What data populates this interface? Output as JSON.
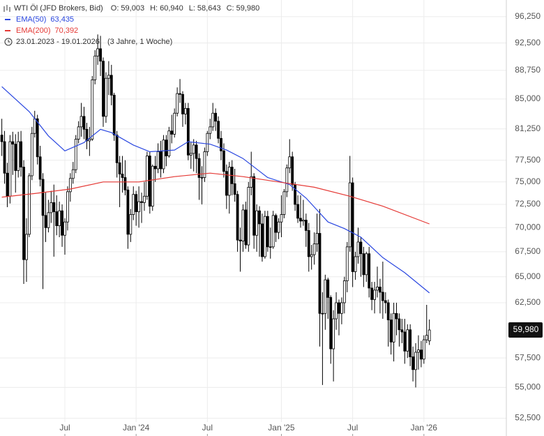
{
  "chart_data": {
    "type": "candlestick",
    "header": {
      "title": "WTI Öl (JFD Brokers, Bid)",
      "ohlc": [
        {
          "key": "O:",
          "value": "59,003"
        },
        {
          "key": "H:",
          "value": "60,940"
        },
        {
          "key": "L:",
          "value": "58,643"
        },
        {
          "key": "C:",
          "value": "59,980"
        }
      ],
      "range": "23.01.2023 - 19.01.2026",
      "span": "(3 Jahre, 1 Woche)"
    },
    "up_color": "#ffffff",
    "down_color": "#000000",
    "open": [
      80.5,
      79.7,
      76.0,
      73.4,
      79.7,
      79.4,
      76.3,
      79.7,
      76.7,
      66.7,
      69.3,
      75.7,
      80.7,
      82.5,
      77.9,
      75.3,
      71.3,
      70.0,
      71.6,
      72.7,
      71.7,
      70.2,
      71.8,
      69.2,
      70.6,
      73.9,
      75.4,
      76.4,
      80.0,
      81.5,
      82.8,
      81.2,
      79.8,
      80.0,
      87.5,
      90.7,
      91.7,
      90.0,
      82.8,
      87.7,
      88.1,
      85.5,
      80.5,
      77.2,
      75.9,
      75.5,
      74.1,
      69.3,
      71.4,
      73.6,
      71.7,
      72.8,
      72.7,
      73.4,
      78.0,
      72.3,
      76.8,
      76.5,
      78.5,
      76.5,
      79.9,
      78.0,
      81.0,
      80.6,
      83.2,
      85.7,
      85.6,
      83.1,
      83.8,
      78.1,
      78.3,
      79.3,
      77.7,
      75.5,
      75.5,
      78.5,
      80.7,
      81.5,
      83.2,
      82.2,
      80.1,
      78.6,
      76.2,
      73.5,
      76.7,
      74.8,
      73.6,
      68.7,
      68.6,
      71.9,
      68.2,
      74.4,
      75.6,
      69.2,
      71.8,
      70.4,
      67.0,
      71.2,
      68.0,
      68.0,
      71.3,
      69.5,
      70.6,
      71.4,
      73.9,
      76.6,
      77.9,
      74.7,
      72.5,
      71.0,
      70.7,
      70.8,
      69.7,
      67.0,
      67.2,
      68.3,
      69.4,
      61.5,
      61.5,
      64.7,
      63.0,
      58.3,
      61.0,
      62.5,
      61.5,
      62.5,
      64.6,
      68.0,
      74.9,
      65.5,
      67.0,
      68.5,
      67.3,
      65.2,
      67.3,
      63.9,
      62.8,
      63.7,
      64.0,
      63.5,
      62.7,
      62.5,
      60.9,
      58.9,
      61.5,
      61.0,
      60.0,
      59.8,
      58.1,
      60.0,
      57.6,
      56.5,
      58.0,
      58.2,
      57.4,
      59.1,
      59.003
    ],
    "high": [
      82.5,
      81.0,
      77.2,
      80.5,
      80.9,
      80.6,
      80.9,
      81.0,
      77.5,
      71.0,
      76.0,
      81.5,
      83.5,
      83.0,
      79.2,
      76.0,
      73.8,
      73.0,
      74.0,
      74.7,
      73.5,
      72.8,
      72.5,
      71.0,
      74.5,
      76.0,
      77.3,
      80.5,
      82.2,
      84.5,
      84.0,
      82.0,
      81.5,
      88.0,
      91.5,
      93.7,
      93.5,
      90.5,
      88.5,
      90.0,
      89.5,
      85.8,
      81.0,
      78.0,
      78.0,
      77.5,
      74.5,
      72.0,
      74.5,
      74.0,
      74.5,
      73.8,
      75.0,
      78.5,
      78.5,
      77.0,
      78.0,
      79.5,
      79.8,
      80.5,
      80.5,
      81.5,
      83.0,
      83.8,
      86.5,
      87.6,
      86.0,
      84.5,
      84.5,
      79.6,
      80.0,
      79.8,
      78.3,
      76.8,
      79.0,
      81.0,
      82.5,
      84.5,
      83.8,
      82.8,
      81.0,
      79.5,
      77.0,
      77.3,
      77.5,
      76.5,
      74.0,
      70.0,
      72.5,
      72.8,
      75.0,
      78.5,
      76.0,
      72.5,
      72.3,
      71.5,
      71.8,
      71.8,
      70.0,
      71.8,
      71.5,
      71.0,
      73.5,
      74.2,
      77.0,
      80.0,
      78.5,
      75.0,
      73.5,
      73.5,
      73.0,
      71.5,
      70.5,
      68.2,
      69.5,
      71.5,
      72.0,
      63.5,
      65.2,
      64.9,
      63.2,
      61.8,
      63.5,
      62.8,
      63.0,
      65.0,
      68.5,
      78.0,
      75.5,
      67.5,
      70.0,
      69.0,
      68.0,
      67.5,
      68.0,
      64.5,
      64.5,
      66.0,
      64.8,
      66.5,
      63.5,
      62.8,
      61.5,
      62.5,
      62.5,
      61.5,
      61.0,
      61.0,
      60.5,
      60.5,
      58.5,
      58.8,
      59.5,
      59.0,
      59.5,
      62.3,
      60.94
    ],
    "low": [
      78.0,
      74.8,
      72.2,
      72.6,
      75.8,
      73.8,
      75.5,
      75.6,
      64.3,
      64.5,
      69.0,
      75.2,
      80.2,
      77.0,
      74.5,
      63.8,
      68.5,
      69.5,
      70.5,
      67.0,
      69.2,
      69.0,
      68.0,
      67.2,
      69.7,
      72.8,
      74.8,
      76.0,
      79.5,
      80.3,
      80.0,
      78.8,
      78.0,
      79.8,
      86.9,
      89.5,
      88.0,
      81.5,
      82.0,
      85.5,
      84.2,
      79.8,
      75.5,
      72.2,
      73.8,
      73.5,
      67.8,
      68.5,
      70.8,
      70.2,
      70.0,
      70.5,
      71.8,
      73.0,
      71.5,
      71.8,
      75.0,
      76.0,
      75.5,
      76.0,
      76.8,
      77.8,
      79.5,
      80.2,
      82.8,
      84.5,
      81.5,
      81.8,
      77.5,
      76.5,
      76.2,
      76.0,
      73.0,
      72.5,
      75.0,
      78.0,
      80.0,
      81.0,
      81.0,
      79.5,
      77.5,
      75.5,
      72.0,
      71.5,
      73.5,
      72.8,
      67.5,
      65.5,
      67.5,
      67.8,
      67.5,
      73.5,
      67.8,
      67.5,
      67.0,
      66.5,
      66.8,
      67.5,
      66.8,
      67.8,
      68.5,
      68.8,
      69.0,
      71.0,
      73.3,
      76.0,
      74.0,
      71.8,
      70.5,
      70.0,
      70.2,
      68.0,
      65.5,
      65.7,
      66.2,
      67.5,
      58.5,
      55.2,
      60.0,
      61.0,
      57.0,
      55.5,
      60.0,
      59.5,
      60.5,
      61.5,
      63.5,
      67.5,
      64.0,
      64.7,
      66.3,
      65.0,
      64.0,
      64.5,
      63.0,
      61.8,
      61.5,
      63.0,
      61.5,
      61.0,
      61.5,
      58.5,
      57.8,
      57.2,
      59.5,
      58.5,
      58.8,
      57.0,
      57.5,
      56.8,
      55.5,
      55.0,
      56.5,
      56.7,
      57.0,
      58.8,
      58.643
    ],
    "close": [
      79.7,
      76.0,
      73.4,
      79.7,
      79.4,
      76.3,
      79.7,
      76.7,
      66.7,
      69.3,
      75.7,
      80.7,
      82.5,
      77.9,
      75.3,
      71.3,
      70.0,
      71.6,
      72.7,
      71.7,
      70.2,
      71.8,
      69.2,
      70.6,
      73.9,
      75.4,
      76.4,
      80.0,
      81.5,
      82.8,
      81.2,
      79.8,
      80.0,
      87.5,
      90.7,
      91.7,
      90.0,
      82.8,
      87.7,
      88.1,
      85.5,
      80.5,
      77.2,
      75.9,
      75.5,
      74.1,
      69.3,
      71.4,
      73.6,
      71.7,
      72.8,
      72.7,
      73.4,
      78.0,
      72.3,
      76.8,
      76.5,
      78.5,
      76.5,
      79.9,
      78.0,
      81.0,
      80.6,
      83.2,
      85.7,
      85.6,
      83.1,
      83.8,
      78.1,
      78.3,
      79.3,
      77.7,
      75.5,
      75.5,
      78.5,
      80.7,
      81.5,
      83.2,
      82.2,
      80.1,
      78.6,
      76.2,
      73.5,
      76.7,
      74.8,
      73.6,
      68.7,
      68.6,
      71.9,
      68.2,
      74.4,
      75.6,
      69.2,
      71.8,
      70.4,
      67.0,
      71.2,
      68.0,
      68.0,
      71.3,
      69.5,
      70.6,
      71.4,
      73.9,
      76.6,
      77.9,
      74.7,
      72.5,
      71.0,
      70.7,
      70.8,
      69.7,
      67.0,
      67.2,
      68.3,
      69.4,
      61.5,
      61.5,
      64.7,
      63.0,
      58.3,
      61.0,
      62.5,
      61.5,
      62.5,
      64.6,
      68.0,
      74.9,
      65.5,
      67.0,
      68.5,
      67.3,
      65.2,
      67.3,
      63.9,
      62.8,
      63.7,
      64.0,
      63.5,
      62.7,
      62.5,
      60.9,
      58.9,
      61.5,
      61.0,
      60.0,
      59.8,
      58.1,
      60.0,
      57.6,
      56.5,
      58.0,
      58.2,
      57.4,
      59.1,
      59.5,
      59.98
    ],
    "series": [
      {
        "name": "EMA(50)",
        "color": "#2a47e0",
        "value_label": "63,435",
        "x": [
          0,
          10,
          17,
          23,
          30,
          36,
          40,
          48,
          54,
          63,
          68,
          76,
          82,
          88,
          97,
          105,
          111,
          119,
          125,
          131,
          139,
          147,
          156
        ],
        "values": [
          86.6,
          83.4,
          80.4,
          78.6,
          79.6,
          81.2,
          80.8,
          79.3,
          78.5,
          78.7,
          79.7,
          79.4,
          78.7,
          77.7,
          75.5,
          74.7,
          73.2,
          70.6,
          69.9,
          69.0,
          66.9,
          65.4,
          63.435
        ]
      },
      {
        "name": "EMA(200)",
        "color": "#e53935",
        "value_label": "70,392",
        "x": [
          0,
          12,
          25,
          37,
          50,
          63,
          76,
          88,
          101,
          114,
          127,
          139,
          156
        ],
        "values": [
          73.3,
          73.7,
          74.2,
          75.0,
          75.0,
          75.6,
          76.0,
          75.6,
          75.0,
          74.4,
          73.4,
          72.3,
          70.392
        ]
      }
    ],
    "log_scale": true,
    "grid": true,
    "ylim": [
      52.2,
      98.7
    ],
    "yticks": [
      {
        "value": 96.25,
        "label": "96,250"
      },
      {
        "value": 92.5,
        "label": "92,500"
      },
      {
        "value": 88.75,
        "label": "88,750"
      },
      {
        "value": 85,
        "label": "85,000"
      },
      {
        "value": 81.25,
        "label": "81,250"
      },
      {
        "value": 77.5,
        "label": "77,500"
      },
      {
        "value": 75,
        "label": "75,000"
      },
      {
        "value": 72.5,
        "label": "72,500"
      },
      {
        "value": 70,
        "label": "70,000"
      },
      {
        "value": 67.5,
        "label": "67,500"
      },
      {
        "value": 65,
        "label": "65,000"
      },
      {
        "value": 62.5,
        "label": "62,500"
      },
      {
        "value": 57.5,
        "label": "57,500"
      },
      {
        "value": 55,
        "label": "55,000"
      },
      {
        "value": 52.5,
        "label": "52,500"
      }
    ],
    "xticks": [
      {
        "value": 23,
        "label": "Jul"
      },
      {
        "value": 49,
        "label": "Jan '24"
      },
      {
        "value": 75,
        "label": "Jul"
      },
      {
        "value": 102,
        "label": "Jan '25"
      },
      {
        "value": 128,
        "label": "Jul"
      },
      {
        "value": 154,
        "label": "Jan '26"
      }
    ]
  }
}
